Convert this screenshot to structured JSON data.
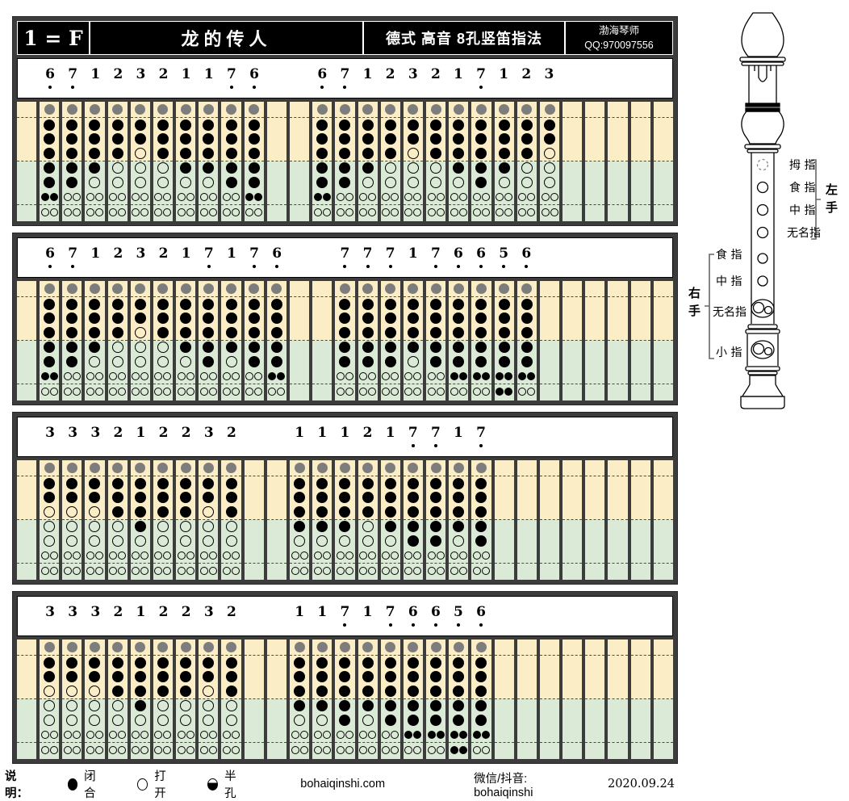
{
  "header": {
    "key_signature": "1 = F",
    "title": "龙的传人",
    "subtitle": "德式 高音 8孔竖笛指法",
    "author": "渤海琴师",
    "qq": "QQ:970097556"
  },
  "grid": {
    "total_columns": 29,
    "lead_columns": 1,
    "phrase_gap_columns": 2
  },
  "rows": [
    {
      "phrase1": [
        "6.",
        "7.",
        "1",
        "2",
        "3",
        "2",
        "1",
        "1",
        "7.",
        "6."
      ],
      "phrase2": [
        "6.",
        "7.",
        "1",
        "2",
        "3",
        "2",
        "1",
        "7.",
        "1",
        "2",
        "3"
      ]
    },
    {
      "phrase1": [
        "6.",
        "7.",
        "1",
        "2",
        "3",
        "2",
        "1",
        "7.",
        "1",
        "7.",
        "6."
      ],
      "phrase2": [
        "7.",
        "7.",
        "7.",
        "1",
        "7.",
        "6.",
        "6.",
        "5.",
        "6."
      ]
    },
    {
      "phrase1": [
        "3",
        "3",
        "3",
        "2",
        "1",
        "2",
        "2",
        "3",
        "2"
      ],
      "phrase2": [
        "1",
        "1",
        "1",
        "2",
        "1",
        "7.",
        "7.",
        "1",
        "7."
      ]
    },
    {
      "phrase1": [
        "3",
        "3",
        "3",
        "2",
        "1",
        "2",
        "2",
        "3",
        "2"
      ],
      "phrase2": [
        "1",
        "1",
        "7.",
        "1",
        "7.",
        "6.",
        "6.",
        "5.",
        "6."
      ]
    }
  ],
  "fingerings": {
    "5.": {
      "thumb": 1,
      "holes": [
        1,
        1,
        1,
        1,
        1
      ],
      "double6": 1,
      "double7": 1
    },
    "6.": {
      "thumb": 1,
      "holes": [
        1,
        1,
        1,
        1,
        1
      ],
      "double6": 1,
      "double7": 0
    },
    "7.": {
      "thumb": 1,
      "holes": [
        1,
        1,
        1,
        1,
        1
      ],
      "double6": 0,
      "double7": 0
    },
    "1": {
      "thumb": 1,
      "holes": [
        1,
        1,
        1,
        1,
        0
      ],
      "double6": 0,
      "double7": 0
    },
    "2": {
      "thumb": 1,
      "holes": [
        1,
        1,
        1,
        0,
        0
      ],
      "double6": 0,
      "double7": 0
    },
    "3": {
      "thumb": 1,
      "holes": [
        1,
        1,
        0,
        0,
        0
      ],
      "double6": 0,
      "double7": 0
    }
  },
  "recorder": {
    "left_hand": {
      "label": "左手",
      "fingers": [
        "拇 指",
        "食 指",
        "中 指",
        "无名指"
      ]
    },
    "right_hand": {
      "label": "右手",
      "fingers": [
        "食 指",
        "中 指",
        "无名指",
        "小 指"
      ]
    }
  },
  "legend": {
    "label": "说明：",
    "items": [
      {
        "type": "closed",
        "text": "闭合"
      },
      {
        "type": "open",
        "text": "打开"
      },
      {
        "type": "half",
        "text": "半孔"
      }
    ],
    "website": "bohaiqinshi.com",
    "social": "微信/抖音: bohaiqinshi",
    "date": "2020.09.24"
  },
  "colors": {
    "frame": "#3c3c3c",
    "left_hand_zone": "#fbeec7",
    "right_hand_zone": "#dbead7",
    "thumb_gray": "#7d7d7d",
    "hole_black": "#000000"
  }
}
